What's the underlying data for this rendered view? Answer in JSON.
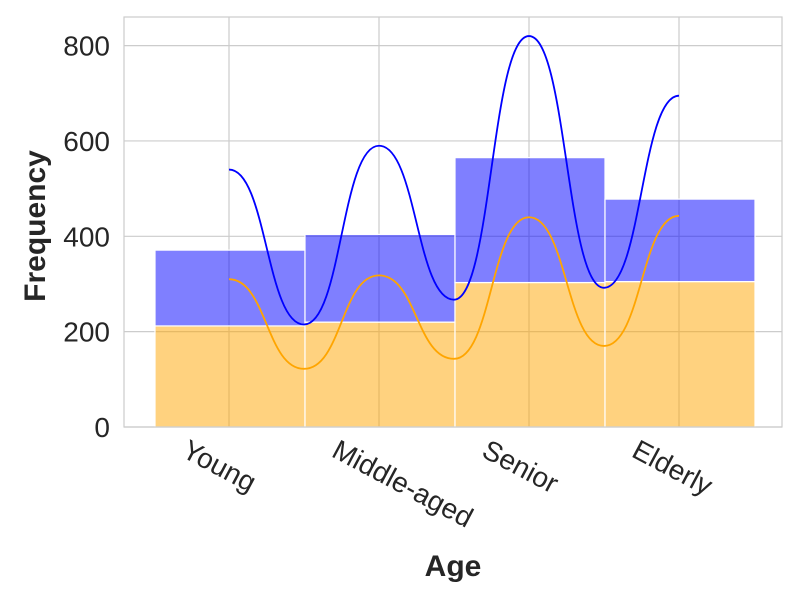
{
  "chart_data": {
    "type": "bar",
    "stacked": true,
    "title": "",
    "xlabel": "Age",
    "ylabel": "Frequency",
    "categories": [
      "Young",
      "Middle-aged",
      "Senior",
      "Elderly"
    ],
    "ylim": [
      0,
      860
    ],
    "yticks": [
      0,
      200,
      400,
      600,
      800
    ],
    "grid": true,
    "series": [
      {
        "color": "#ffa500",
        "values": [
          212,
          220,
          303,
          305
        ]
      },
      {
        "color": "#0000ff",
        "values": [
          159,
          184,
          262,
          173
        ]
      }
    ],
    "overlay_curves": [
      {
        "color": "#ffa500",
        "anchors": [
          [
            "Young",
            310
          ],
          [
            "Middle-aged",
            318
          ],
          [
            "Senior",
            440
          ],
          [
            "Elderly",
            443
          ]
        ],
        "troughs": [
          122,
          143,
          170
        ]
      },
      {
        "color": "#0000ff",
        "anchors": [
          [
            "Young",
            540
          ],
          [
            "Middle-aged",
            590
          ],
          [
            "Senior",
            820
          ],
          [
            "Elderly",
            695
          ]
        ],
        "troughs": [
          215,
          267,
          292
        ]
      }
    ]
  }
}
